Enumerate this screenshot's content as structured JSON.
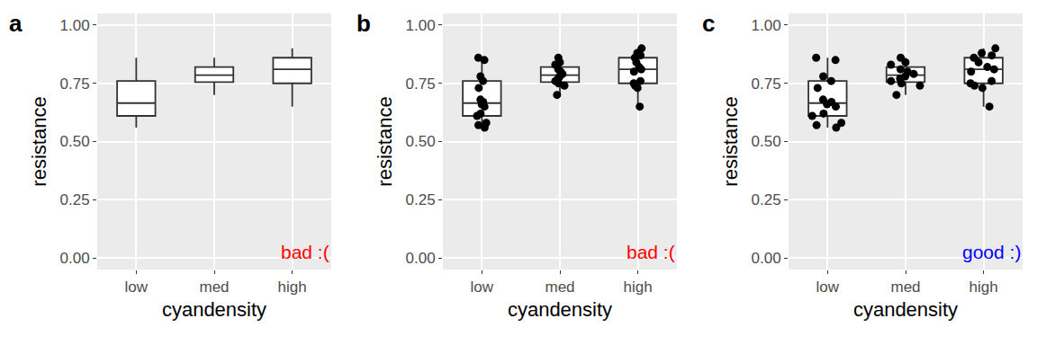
{
  "chart_data": [
    {
      "type": "box",
      "title": "a",
      "x_label": "cyandensity",
      "y_label": "resistance",
      "categories": [
        "low",
        "med",
        "high"
      ],
      "values": [
        [
          0.56,
          0.57,
          0.58,
          0.61,
          0.62,
          0.65,
          0.66,
          0.67,
          0.68,
          0.73,
          0.76,
          0.78,
          0.85,
          0.86
        ],
        [
          0.7,
          0.74,
          0.75,
          0.76,
          0.77,
          0.78,
          0.79,
          0.8,
          0.81,
          0.83,
          0.84,
          0.86
        ],
        [
          0.65,
          0.73,
          0.74,
          0.75,
          0.76,
          0.8,
          0.81,
          0.82,
          0.84,
          0.86,
          0.87,
          0.88,
          0.9
        ]
      ],
      "ylim": [
        -0.05,
        1.05
      ],
      "yticks": [
        {
          "value": 0,
          "label": "0.00"
        },
        {
          "value": 0.25,
          "label": "0.25"
        },
        {
          "value": 0.5,
          "label": "0.50"
        },
        {
          "value": 0.75,
          "label": "0.75"
        },
        {
          "value": 1,
          "label": "1.00"
        }
      ],
      "grid": true,
      "marker": "none",
      "annotations": [
        {
          "text": "bad :(",
          "color": "#ff0000"
        }
      ]
    },
    {
      "type": "box",
      "title": "b",
      "x_label": "cyandensity",
      "y_label": "resistance",
      "categories": [
        "low",
        "med",
        "high"
      ],
      "values": [
        [
          0.56,
          0.57,
          0.58,
          0.61,
          0.62,
          0.65,
          0.66,
          0.67,
          0.68,
          0.73,
          0.76,
          0.78,
          0.85,
          0.86
        ],
        [
          0.7,
          0.74,
          0.75,
          0.76,
          0.77,
          0.78,
          0.79,
          0.8,
          0.81,
          0.83,
          0.84,
          0.86
        ],
        [
          0.65,
          0.73,
          0.74,
          0.75,
          0.76,
          0.8,
          0.81,
          0.82,
          0.84,
          0.86,
          0.87,
          0.88,
          0.9
        ]
      ],
      "ylim": [
        -0.05,
        1.05
      ],
      "yticks": [
        {
          "value": 0,
          "label": "0.00"
        },
        {
          "value": 0.25,
          "label": "0.25"
        },
        {
          "value": 0.5,
          "label": "0.50"
        },
        {
          "value": 0.75,
          "label": "0.75"
        },
        {
          "value": 1,
          "label": "1.00"
        }
      ],
      "grid": true,
      "marker": "dot",
      "color": "#000000",
      "annotations": [
        {
          "text": "bad :(",
          "color": "#ff0000"
        }
      ]
    },
    {
      "type": "box",
      "title": "c",
      "x_label": "cyandensity",
      "y_label": "resistance",
      "categories": [
        "low",
        "med",
        "high"
      ],
      "values": [
        [
          0.56,
          0.57,
          0.58,
          0.61,
          0.62,
          0.65,
          0.66,
          0.67,
          0.68,
          0.73,
          0.76,
          0.78,
          0.85,
          0.86
        ],
        [
          0.7,
          0.74,
          0.75,
          0.76,
          0.77,
          0.78,
          0.79,
          0.8,
          0.81,
          0.83,
          0.84,
          0.86
        ],
        [
          0.65,
          0.73,
          0.74,
          0.75,
          0.76,
          0.8,
          0.81,
          0.82,
          0.84,
          0.86,
          0.87,
          0.88,
          0.9
        ]
      ],
      "ylim": [
        -0.05,
        1.05
      ],
      "yticks": [
        {
          "value": 0,
          "label": "0.00"
        },
        {
          "value": 0.25,
          "label": "0.25"
        },
        {
          "value": 0.5,
          "label": "0.50"
        },
        {
          "value": 0.75,
          "label": "0.75"
        },
        {
          "value": 1,
          "label": "1.00"
        }
      ],
      "grid": true,
      "marker": "jitter",
      "color": "#000000",
      "annotations": [
        {
          "text": "good :)",
          "color": "#0000ff"
        }
      ]
    }
  ]
}
